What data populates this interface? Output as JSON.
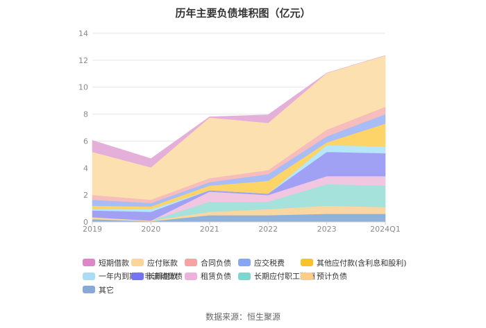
{
  "chart_data": {
    "type": "area",
    "stacked": true,
    "title": "历年主要负债堆积图（亿元）",
    "xlabel": "",
    "ylabel": "",
    "categories": [
      "2019",
      "2020",
      "2021",
      "2022",
      "2023",
      "2024Q1"
    ],
    "y_ticks": [
      0,
      2,
      4,
      6,
      8,
      10,
      12,
      14
    ],
    "ylim": [
      0,
      14
    ],
    "grid": true,
    "series": [
      {
        "name": "其它",
        "color": "#8fb2dc",
        "values": [
          0.2,
          0.05,
          0.5,
          0.5,
          0.6,
          0.6
        ]
      },
      {
        "name": "预计负债",
        "color": "#fad7a0",
        "values": [
          0.15,
          0.05,
          0.25,
          0.45,
          0.6,
          0.5
        ]
      },
      {
        "name": "长期应付职工薪酬",
        "color": "#a5e2dc",
        "values": [
          0.0,
          0.0,
          0.75,
          0.55,
          1.6,
          1.6
        ]
      },
      {
        "name": "租赁负债",
        "color": "#f0c6e0",
        "values": [
          0.0,
          0.0,
          0.75,
          0.5,
          0.6,
          0.7
        ]
      },
      {
        "name": "长期借款",
        "color": "#a0a0f5",
        "values": [
          0.5,
          0.65,
          0.1,
          0.1,
          1.8,
          1.7
        ]
      },
      {
        "name": "一年内到期的非流动负债",
        "color": "#b5e6fa",
        "values": [
          0.1,
          0.2,
          0.0,
          0.0,
          0.5,
          0.5
        ]
      },
      {
        "name": "其他应付款(含利息和股利)",
        "color": "#fcd467",
        "values": [
          0.25,
          0.2,
          0.35,
          0.95,
          0.2,
          1.7
        ]
      },
      {
        "name": "应交税费",
        "color": "#a8bcf5",
        "values": [
          0.45,
          0.25,
          0.25,
          0.5,
          0.45,
          0.7
        ]
      },
      {
        "name": "合同负债",
        "color": "#f7bcbc",
        "values": [
          0.35,
          0.25,
          0.3,
          0.3,
          0.5,
          0.55
        ]
      },
      {
        "name": "应付账款",
        "color": "#fde0b0",
        "values": [
          3.2,
          2.4,
          4.5,
          3.5,
          4.2,
          3.8
        ]
      },
      {
        "name": "短期借款",
        "color": "#e4afd8",
        "values": [
          0.85,
          0.65,
          0.05,
          0.6,
          0.0,
          0.0
        ]
      }
    ]
  },
  "legend": {
    "rows": [
      [
        {
          "label": "短期借款",
          "color": "#dd86c8"
        },
        {
          "label": "应付账款",
          "color": "#fcd699"
        },
        {
          "label": "合同负债",
          "color": "#f5a3a3"
        },
        {
          "label": "应交税费",
          "color": "#88a6f2"
        },
        {
          "label": "其他应付款(含利息和股利)",
          "color": "#f9c12b"
        }
      ],
      [
        {
          "label": "一年内到期的非流动负债",
          "color": "#a9dcf7"
        },
        {
          "label": "长期借款",
          "color": "#7474f0"
        },
        {
          "label": "租赁负债",
          "color": "#ecb2dc"
        },
        {
          "label": "长期应付职工薪酬",
          "color": "#7ed6cc"
        },
        {
          "label": "预计负债",
          "color": "#fccc88"
        }
      ],
      [
        {
          "label": "其它",
          "color": "#88a8d8"
        }
      ]
    ]
  },
  "source": "数据来源：恒生聚源"
}
